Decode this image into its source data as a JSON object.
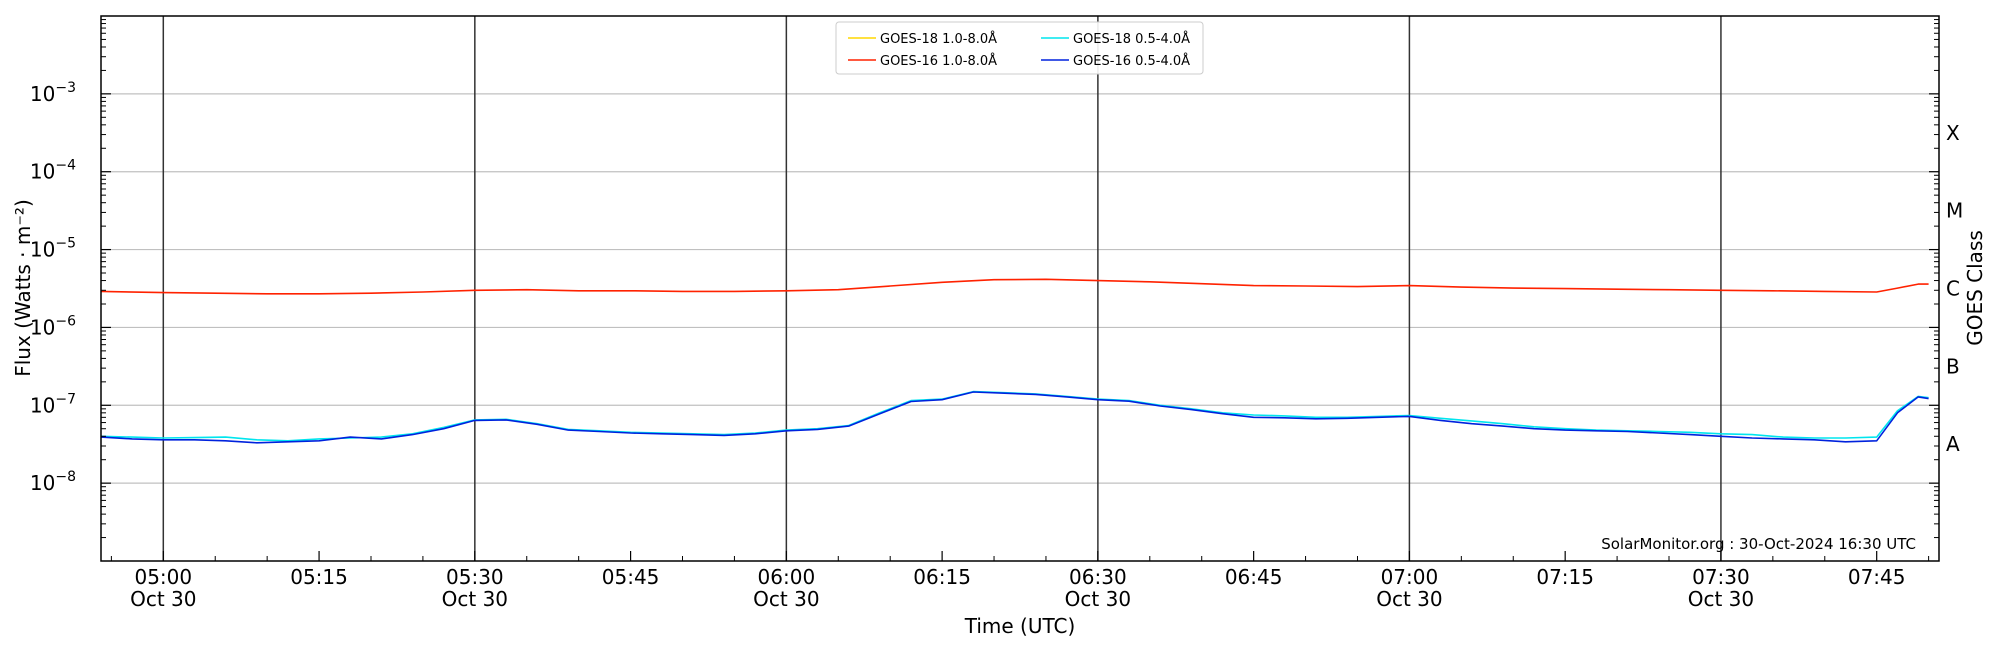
{
  "chart_data": {
    "type": "line",
    "title": "",
    "xlabel": "Time (UTC)",
    "ylabel": "Flux (Watts · m⁻²)",
    "y2label": "GOES Class",
    "yscale": "log",
    "ylim": [
      1e-09,
      0.01
    ],
    "xlim": [
      "2024-10-30 04:54",
      "2024-10-30 07:51"
    ],
    "grid": "horizontal at decades",
    "legend_position": "top-center",
    "annotation": "SolarMonitor.org : 30-Oct-2024 16:30 UTC",
    "x_ticks": [
      {
        "t": "2024-10-30 05:00",
        "label": "05:00",
        "sublabel": "Oct 30"
      },
      {
        "t": "2024-10-30 05:15",
        "label": "05:15",
        "sublabel": ""
      },
      {
        "t": "2024-10-30 05:30",
        "label": "05:30",
        "sublabel": "Oct 30"
      },
      {
        "t": "2024-10-30 05:45",
        "label": "05:45",
        "sublabel": ""
      },
      {
        "t": "2024-10-30 06:00",
        "label": "06:00",
        "sublabel": "Oct 30"
      },
      {
        "t": "2024-10-30 06:15",
        "label": "06:15",
        "sublabel": ""
      },
      {
        "t": "2024-10-30 06:30",
        "label": "06:30",
        "sublabel": "Oct 30"
      },
      {
        "t": "2024-10-30 06:45",
        "label": "06:45",
        "sublabel": ""
      },
      {
        "t": "2024-10-30 07:00",
        "label": "07:00",
        "sublabel": "Oct 30"
      },
      {
        "t": "2024-10-30 07:15",
        "label": "07:15",
        "sublabel": ""
      },
      {
        "t": "2024-10-30 07:30",
        "label": "07:30",
        "sublabel": "Oct 30"
      },
      {
        "t": "2024-10-30 07:45",
        "label": "07:45",
        "sublabel": ""
      }
    ],
    "x_vlines": [
      "2024-10-30 05:00",
      "2024-10-30 05:30",
      "2024-10-30 06:00",
      "2024-10-30 06:30",
      "2024-10-30 07:00",
      "2024-10-30 07:30"
    ],
    "y_ticks": [
      {
        "value": 1e-08,
        "base": "10",
        "exp": "−8"
      },
      {
        "value": 1e-07,
        "base": "10",
        "exp": "−7"
      },
      {
        "value": 1e-06,
        "base": "10",
        "exp": "−6"
      },
      {
        "value": 1e-05,
        "base": "10",
        "exp": "−5"
      },
      {
        "value": 0.0001,
        "base": "10",
        "exp": "−4"
      },
      {
        "value": 0.001,
        "base": "10",
        "exp": "−3"
      }
    ],
    "goes_classes": [
      {
        "label": "A",
        "value": 1e-08
      },
      {
        "label": "B",
        "value": 1e-07
      },
      {
        "label": "C",
        "value": 1e-06
      },
      {
        "label": "M",
        "value": 1e-05
      },
      {
        "label": "X",
        "value": 0.0001
      }
    ],
    "series": [
      {
        "name": "GOES-18 1.0-8.0Å",
        "color": "#ffd700",
        "x": [],
        "values": []
      },
      {
        "name": "GOES-16 1.0-8.0Å",
        "color": "#ff2200",
        "x": [
          "2024-10-30 04:54",
          "2024-10-30 05:00",
          "2024-10-30 05:05",
          "2024-10-30 05:10",
          "2024-10-30 05:15",
          "2024-10-30 05:20",
          "2024-10-30 05:25",
          "2024-10-30 05:30",
          "2024-10-30 05:35",
          "2024-10-30 05:40",
          "2024-10-30 05:45",
          "2024-10-30 05:50",
          "2024-10-30 05:55",
          "2024-10-30 06:00",
          "2024-10-30 06:05",
          "2024-10-30 06:10",
          "2024-10-30 06:15",
          "2024-10-30 06:20",
          "2024-10-30 06:25",
          "2024-10-30 06:30",
          "2024-10-30 06:35",
          "2024-10-30 06:40",
          "2024-10-30 06:45",
          "2024-10-30 06:50",
          "2024-10-30 06:55",
          "2024-10-30 07:00",
          "2024-10-30 07:05",
          "2024-10-30 07:10",
          "2024-10-30 07:15",
          "2024-10-30 07:20",
          "2024-10-30 07:25",
          "2024-10-30 07:30",
          "2024-10-30 07:35",
          "2024-10-30 07:40",
          "2024-10-30 07:45",
          "2024-10-30 07:47",
          "2024-10-30 07:49",
          "2024-10-30 07:50"
        ],
        "values": [
          2.9e-06,
          2.8e-06,
          2.75e-06,
          2.7e-06,
          2.7e-06,
          2.75e-06,
          2.85e-06,
          3e-06,
          3.05e-06,
          2.95e-06,
          2.95e-06,
          2.9e-06,
          2.9e-06,
          2.95e-06,
          3.05e-06,
          3.4e-06,
          3.8e-06,
          4.1e-06,
          4.15e-06,
          4e-06,
          3.85e-06,
          3.65e-06,
          3.45e-06,
          3.4e-06,
          3.35e-06,
          3.45e-06,
          3.3e-06,
          3.2e-06,
          3.15e-06,
          3.1e-06,
          3.05e-06,
          3e-06,
          2.95e-06,
          2.9e-06,
          2.85e-06,
          3.2e-06,
          3.6e-06,
          3.6e-06
        ]
      },
      {
        "name": "GOES-18 0.5-4.0Å",
        "color": "#00e5ee",
        "x": [
          "2024-10-30 04:54",
          "2024-10-30 04:57",
          "2024-10-30 05:00",
          "2024-10-30 05:03",
          "2024-10-30 05:06",
          "2024-10-30 05:09",
          "2024-10-30 05:12",
          "2024-10-30 05:15",
          "2024-10-30 05:18",
          "2024-10-30 05:21",
          "2024-10-30 05:24",
          "2024-10-30 05:27",
          "2024-10-30 05:30",
          "2024-10-30 05:33",
          "2024-10-30 05:36",
          "2024-10-30 05:39",
          "2024-10-30 05:42",
          "2024-10-30 05:45",
          "2024-10-30 05:48",
          "2024-10-30 05:51",
          "2024-10-30 05:54",
          "2024-10-30 05:57",
          "2024-10-30 06:00",
          "2024-10-30 06:03",
          "2024-10-30 06:06",
          "2024-10-30 06:09",
          "2024-10-30 06:12",
          "2024-10-30 06:15",
          "2024-10-30 06:18",
          "2024-10-30 06:21",
          "2024-10-30 06:24",
          "2024-10-30 06:27",
          "2024-10-30 06:30",
          "2024-10-30 06:33",
          "2024-10-30 06:36",
          "2024-10-30 06:39",
          "2024-10-30 06:42",
          "2024-10-30 06:45",
          "2024-10-30 06:48",
          "2024-10-30 06:51",
          "2024-10-30 06:54",
          "2024-10-30 06:57",
          "2024-10-30 07:00",
          "2024-10-30 07:03",
          "2024-10-30 07:06",
          "2024-10-30 07:09",
          "2024-10-30 07:12",
          "2024-10-30 07:15",
          "2024-10-30 07:18",
          "2024-10-30 07:21",
          "2024-10-30 07:24",
          "2024-10-30 07:27",
          "2024-10-30 07:30",
          "2024-10-30 07:33",
          "2024-10-30 07:36",
          "2024-10-30 07:39",
          "2024-10-30 07:42",
          "2024-10-30 07:45",
          "2024-10-30 07:47",
          "2024-10-30 07:49",
          "2024-10-30 07:50"
        ],
        "values": [
          4e-08,
          3.9e-08,
          3.8e-08,
          3.85e-08,
          3.9e-08,
          3.6e-08,
          3.5e-08,
          3.7e-08,
          3.8e-08,
          3.9e-08,
          4.3e-08,
          5.2e-08,
          6.5e-08,
          6.6e-08,
          5.8e-08,
          4.9e-08,
          4.7e-08,
          4.5e-08,
          4.4e-08,
          4.3e-08,
          4.2e-08,
          4.4e-08,
          4.8e-08,
          5e-08,
          5.5e-08,
          8e-08,
          1.15e-07,
          1.2e-07,
          1.5e-07,
          1.45e-07,
          1.4e-07,
          1.3e-07,
          1.2e-07,
          1.15e-07,
          1e-07,
          9e-08,
          8e-08,
          7.5e-08,
          7.3e-08,
          7e-08,
          7e-08,
          7.2e-08,
          7.4e-08,
          6.8e-08,
          6.3e-08,
          5.8e-08,
          5.3e-08,
          5e-08,
          4.8e-08,
          4.7e-08,
          4.6e-08,
          4.5e-08,
          4.3e-08,
          4.2e-08,
          3.9e-08,
          3.8e-08,
          3.8e-08,
          3.9e-08,
          8.5e-08,
          1.3e-07,
          1.25e-07
        ]
      },
      {
        "name": "GOES-16 0.5-4.0Å",
        "color": "#0022dd",
        "x": [
          "2024-10-30 04:54",
          "2024-10-30 04:57",
          "2024-10-30 05:00",
          "2024-10-30 05:03",
          "2024-10-30 05:06",
          "2024-10-30 05:09",
          "2024-10-30 05:12",
          "2024-10-30 05:15",
          "2024-10-30 05:18",
          "2024-10-30 05:21",
          "2024-10-30 05:24",
          "2024-10-30 05:27",
          "2024-10-30 05:30",
          "2024-10-30 05:33",
          "2024-10-30 05:36",
          "2024-10-30 05:39",
          "2024-10-30 05:42",
          "2024-10-30 05:45",
          "2024-10-30 05:48",
          "2024-10-30 05:51",
          "2024-10-30 05:54",
          "2024-10-30 05:57",
          "2024-10-30 06:00",
          "2024-10-30 06:03",
          "2024-10-30 06:06",
          "2024-10-30 06:09",
          "2024-10-30 06:12",
          "2024-10-30 06:15",
          "2024-10-30 06:18",
          "2024-10-30 06:21",
          "2024-10-30 06:24",
          "2024-10-30 06:27",
          "2024-10-30 06:30",
          "2024-10-30 06:33",
          "2024-10-30 06:36",
          "2024-10-30 06:39",
          "2024-10-30 06:42",
          "2024-10-30 06:45",
          "2024-10-30 06:48",
          "2024-10-30 06:51",
          "2024-10-30 06:54",
          "2024-10-30 06:57",
          "2024-10-30 07:00",
          "2024-10-30 07:03",
          "2024-10-30 07:06",
          "2024-10-30 07:09",
          "2024-10-30 07:12",
          "2024-10-30 07:15",
          "2024-10-30 07:18",
          "2024-10-30 07:21",
          "2024-10-30 07:24",
          "2024-10-30 07:27",
          "2024-10-30 07:30",
          "2024-10-30 07:33",
          "2024-10-30 07:36",
          "2024-10-30 07:39",
          "2024-10-30 07:42",
          "2024-10-30 07:45",
          "2024-10-30 07:47",
          "2024-10-30 07:49",
          "2024-10-30 07:50"
        ],
        "values": [
          3.9e-08,
          3.7e-08,
          3.6e-08,
          3.6e-08,
          3.5e-08,
          3.3e-08,
          3.4e-08,
          3.5e-08,
          3.9e-08,
          3.7e-08,
          4.2e-08,
          5e-08,
          6.4e-08,
          6.5e-08,
          5.7e-08,
          4.8e-08,
          4.6e-08,
          4.4e-08,
          4.3e-08,
          4.2e-08,
          4.1e-08,
          4.3e-08,
          4.7e-08,
          4.9e-08,
          5.4e-08,
          7.8e-08,
          1.12e-07,
          1.18e-07,
          1.48e-07,
          1.43e-07,
          1.38e-07,
          1.28e-07,
          1.18e-07,
          1.13e-07,
          9.8e-08,
          8.8e-08,
          7.8e-08,
          7e-08,
          6.9e-08,
          6.7e-08,
          6.8e-08,
          7e-08,
          7.2e-08,
          6.4e-08,
          5.8e-08,
          5.4e-08,
          5e-08,
          4.8e-08,
          4.7e-08,
          4.6e-08,
          4.4e-08,
          4.2e-08,
          4e-08,
          3.8e-08,
          3.7e-08,
          3.6e-08,
          3.4e-08,
          3.5e-08,
          8e-08,
          1.28e-07,
          1.22e-07
        ]
      }
    ]
  }
}
